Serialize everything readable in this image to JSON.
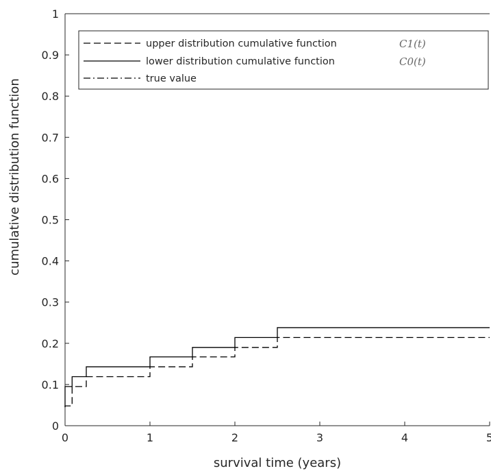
{
  "chart_data": {
    "type": "line",
    "step": true,
    "xlabel": "survival time (years)",
    "ylabel": "cumulative distribution function",
    "xlim": [
      0,
      5
    ],
    "ylim": [
      0,
      1
    ],
    "xticks": [
      0,
      1,
      2,
      3,
      4,
      5
    ],
    "yticks": [
      0,
      0.1,
      0.2,
      0.3,
      0.4,
      0.5,
      0.6,
      0.7,
      0.8,
      0.9,
      1
    ],
    "grid": false,
    "legend_position": "top",
    "series": [
      {
        "name": "upper distribution cumulative function",
        "math": "C1(t)",
        "style": "dashed",
        "color": "#000000",
        "x": [
          0,
          0.083,
          0.25,
          1.0,
          1.5,
          2.0,
          2.5,
          5.0
        ],
        "y": [
          0.048,
          0.095,
          0.119,
          0.143,
          0.167,
          0.19,
          0.214,
          0.214
        ]
      },
      {
        "name": "lower distribution cumulative function",
        "math": "C0(t)",
        "style": "solid",
        "color": "#000000",
        "x": [
          0,
          0.083,
          0.25,
          1.0,
          1.5,
          2.0,
          2.5,
          5.0
        ],
        "y": [
          0.095,
          0.119,
          0.143,
          0.167,
          0.19,
          0.214,
          0.238,
          0.238
        ]
      },
      {
        "name": "true value",
        "style": "dashdot",
        "color": "#000000",
        "x": [],
        "y": []
      }
    ]
  }
}
